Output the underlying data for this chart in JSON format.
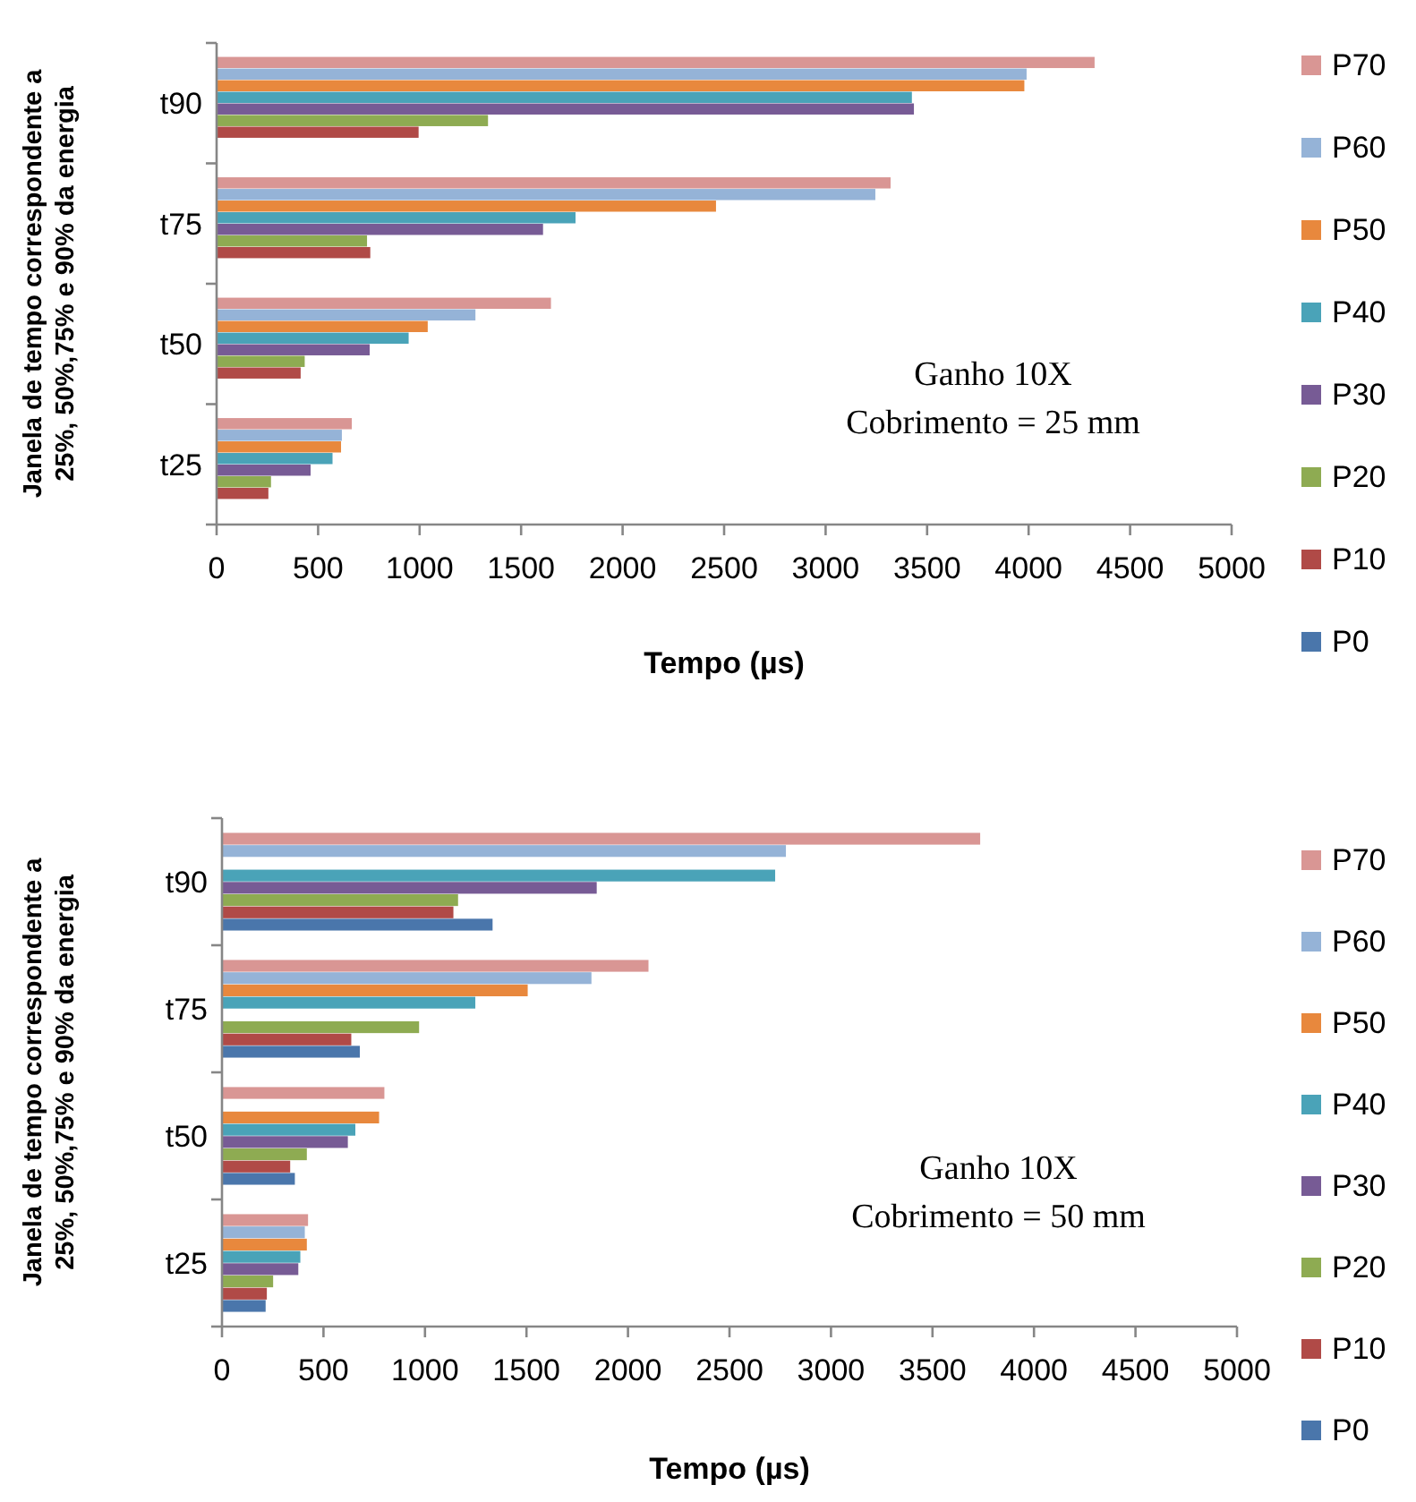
{
  "chart_data": [
    {
      "type": "bar",
      "orientation": "horizontal",
      "xlabel": "Tempo (µs)",
      "ylabel": "Janela de tempo correspondente a 25%, 50%,75% e 90% da energia",
      "categories": [
        "t90",
        "t75",
        "t50",
        "t25"
      ],
      "xlim": [
        0,
        5000
      ],
      "xticks": [
        0,
        500,
        1000,
        1500,
        2000,
        2500,
        3000,
        3500,
        4000,
        4500,
        5000
      ],
      "legend": "right",
      "annotations": [
        "Ganho 10X",
        "Cobrimento = 25 mm"
      ],
      "series": [
        {
          "name": "P70",
          "color": "#d99694",
          "values": [
            4325,
            3320,
            1647,
            666
          ]
        },
        {
          "name": "P60",
          "color": "#95b3d7",
          "values": [
            3990,
            3245,
            1275,
            617
          ]
        },
        {
          "name": "P50",
          "color": "#e8883d",
          "values": [
            3979,
            2460,
            1040,
            613
          ]
        },
        {
          "name": "P40",
          "color": "#4aa3b8",
          "values": [
            3425,
            1768,
            946,
            571
          ]
        },
        {
          "name": "P30",
          "color": "#775b95",
          "values": [
            3435,
            1608,
            754,
            463
          ]
        },
        {
          "name": "P20",
          "color": "#8eab52",
          "values": [
            1337,
            741,
            434,
            268
          ]
        },
        {
          "name": "P10",
          "color": "#b04a47",
          "values": [
            995,
            757,
            414,
            255
          ]
        },
        {
          "name": "P0",
          "color": "#4a76ab",
          "values": [
            null,
            null,
            null,
            null
          ]
        }
      ]
    },
    {
      "type": "bar",
      "orientation": "horizontal",
      "xlabel": "Tempo (µs)",
      "ylabel": "Janela de tempo correspondente a 25%, 50%,75% e 90% da energia",
      "categories": [
        "t90",
        "t75",
        "t50",
        "t25"
      ],
      "xlim": [
        0,
        5000
      ],
      "xticks": [
        0,
        500,
        1000,
        1500,
        2000,
        2500,
        3000,
        3500,
        4000,
        4500,
        5000
      ],
      "legend": "right",
      "annotations": [
        "Ganho 10X",
        "Cobrimento = 50 mm"
      ],
      "series": [
        {
          "name": "P70",
          "color": "#d99694",
          "values": [
            3735,
            2101,
            800,
            424
          ]
        },
        {
          "name": "P60",
          "color": "#95b3d7",
          "values": [
            2778,
            1820,
            null,
            408
          ]
        },
        {
          "name": "P50",
          "color": "#e8883d",
          "values": [
            null,
            1506,
            774,
            418
          ]
        },
        {
          "name": "P40",
          "color": "#4aa3b8",
          "values": [
            2725,
            1248,
            657,
            386
          ]
        },
        {
          "name": "P30",
          "color": "#775b95",
          "values": [
            1846,
            null,
            620,
            376
          ]
        },
        {
          "name": "P20",
          "color": "#8eab52",
          "values": [
            1163,
            971,
            418,
            252
          ]
        },
        {
          "name": "P10",
          "color": "#b04a47",
          "values": [
            1140,
            637,
            336,
            221
          ]
        },
        {
          "name": "P0",
          "color": "#4a76ab",
          "values": [
            1333,
            679,
            359,
            215
          ]
        }
      ]
    }
  ]
}
